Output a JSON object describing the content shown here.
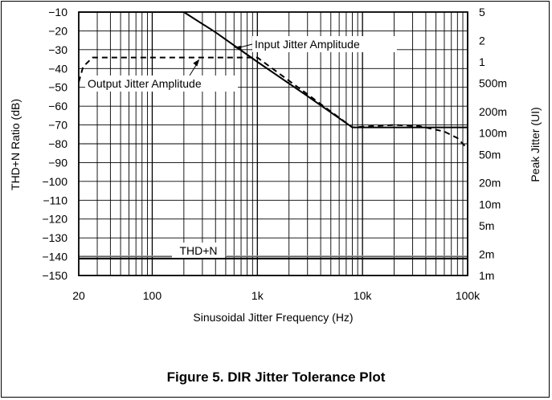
{
  "figure": {
    "caption": "Figure 5. DIR Jitter Tolerance Plot"
  },
  "chart_data": {
    "type": "line",
    "xlabel": "Sinusoidal Jitter Frequency (Hz)",
    "ylabel": "THD+N Ratio (dB)",
    "y2label": "Peak Jitter (UI)",
    "xscale": "log",
    "xlim": [
      20,
      100000
    ],
    "ylim": [
      -150,
      -10
    ],
    "y2scale": "log",
    "y2lim": [
      0.001,
      5
    ],
    "grid": true,
    "x_ticks": [
      {
        "value": 20,
        "label": "20"
      },
      {
        "value": 100,
        "label": "100"
      },
      {
        "value": 1000,
        "label": "1k"
      },
      {
        "value": 10000,
        "label": "10k"
      },
      {
        "value": 100000,
        "label": "100k"
      }
    ],
    "y_ticks": [
      {
        "value": -10,
        "label": "−10"
      },
      {
        "value": -20,
        "label": "−20"
      },
      {
        "value": -30,
        "label": "−30"
      },
      {
        "value": -40,
        "label": "−40"
      },
      {
        "value": -50,
        "label": "−50"
      },
      {
        "value": -60,
        "label": "−60"
      },
      {
        "value": -70,
        "label": "−70"
      },
      {
        "value": -80,
        "label": "−80"
      },
      {
        "value": -90,
        "label": "−90"
      },
      {
        "value": -100,
        "label": "−100"
      },
      {
        "value": -110,
        "label": "−110"
      },
      {
        "value": -120,
        "label": "−120"
      },
      {
        "value": -130,
        "label": "−130"
      },
      {
        "value": -140,
        "label": "−140"
      },
      {
        "value": -150,
        "label": "−150"
      }
    ],
    "y2_ticks": [
      {
        "value": 5,
        "label": "5"
      },
      {
        "value": 2,
        "label": "2"
      },
      {
        "value": 1,
        "label": "1"
      },
      {
        "value": 0.5,
        "label": "500m"
      },
      {
        "value": 0.2,
        "label": "200m"
      },
      {
        "value": 0.1,
        "label": "100m"
      },
      {
        "value": 0.05,
        "label": "50m"
      },
      {
        "value": 0.02,
        "label": "20m"
      },
      {
        "value": 0.01,
        "label": "10m"
      },
      {
        "value": 0.005,
        "label": "5m"
      },
      {
        "value": 0.002,
        "label": "2m"
      },
      {
        "value": 0.001,
        "label": "1m"
      }
    ],
    "series": [
      {
        "name": "Input Jitter Amplitude",
        "style": "solid",
        "axis": "right",
        "points": [
          {
            "x": 20,
            "y": 5
          },
          {
            "x": 200,
            "y": 5
          },
          {
            "x": 400,
            "y": 2.6
          },
          {
            "x": 1000,
            "y": 1.0
          },
          {
            "x": 3000,
            "y": 0.33
          },
          {
            "x": 8000,
            "y": 0.12
          },
          {
            "x": 20000,
            "y": 0.12
          },
          {
            "x": 100000,
            "y": 0.12
          }
        ]
      },
      {
        "name": "Output Jitter Amplitude",
        "style": "dashed",
        "axis": "right",
        "points": [
          {
            "x": 20,
            "y": 0.52
          },
          {
            "x": 22,
            "y": 0.85
          },
          {
            "x": 27,
            "y": 1.15
          },
          {
            "x": 1000,
            "y": 1.15
          },
          {
            "x": 3000,
            "y": 0.35
          },
          {
            "x": 8000,
            "y": 0.12
          },
          {
            "x": 12000,
            "y": 0.125
          },
          {
            "x": 20000,
            "y": 0.13
          },
          {
            "x": 35000,
            "y": 0.125
          },
          {
            "x": 60000,
            "y": 0.105
          },
          {
            "x": 80000,
            "y": 0.085
          },
          {
            "x": 100000,
            "y": 0.06
          }
        ]
      },
      {
        "name": "THD+N",
        "style": "solid",
        "axis": "left",
        "points": [
          {
            "x": 20,
            "y": -141
          },
          {
            "x": 100000,
            "y": -141
          }
        ]
      }
    ],
    "annotations": [
      {
        "text": "Input Jitter Amplitude",
        "target": {
          "x": 600,
          "y": 1.6
        }
      },
      {
        "text": "Output Jitter Amplitude",
        "target": {
          "x": 1000,
          "y": 1.15
        }
      },
      {
        "text": "THD+N"
      }
    ]
  }
}
